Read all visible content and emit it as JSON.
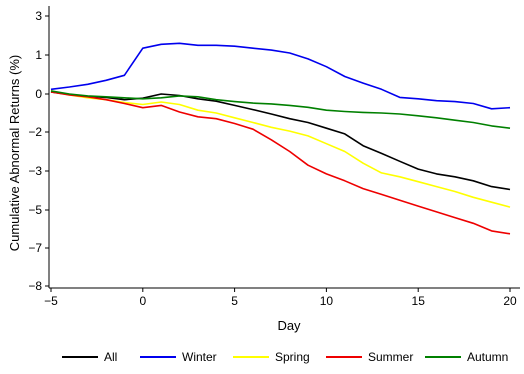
{
  "chart_data": {
    "type": "line",
    "xlabel": "Day",
    "ylabel": "Cumulative Abnormal Returns (%)",
    "xlim": [
      -5,
      20
    ],
    "ylim": [
      -8,
      3.5
    ],
    "xticks": [
      -5,
      0,
      5,
      10,
      15,
      20
    ],
    "yticks": [
      3,
      1,
      0,
      -2,
      -3,
      -5,
      -7,
      -8
    ],
    "ytick_labels": [
      "3",
      "1",
      "0",
      "−2",
      "−3",
      "−5",
      "−7",
      "−8"
    ],
    "xtick_labels": [
      "−5",
      "0",
      "5",
      "10",
      "15",
      "20"
    ],
    "grid": false,
    "legend_position": "bottom",
    "x": [
      -5,
      -4,
      -3,
      -2,
      -1,
      0,
      1,
      2,
      3,
      4,
      5,
      6,
      7,
      8,
      9,
      10,
      11,
      12,
      13,
      14,
      15,
      16,
      17,
      18,
      19,
      20
    ],
    "series": [
      {
        "name": "All",
        "color": "#000000",
        "values": [
          0.05,
          -0.03,
          -0.12,
          -0.18,
          -0.3,
          -0.22,
          0.0,
          -0.08,
          -0.25,
          -0.38,
          -0.6,
          -0.82,
          -1.05,
          -1.3,
          -1.5,
          -1.8,
          -2.05,
          -2.35,
          -2.55,
          -2.75,
          -2.95,
          -3.15,
          -3.3,
          -3.5,
          -3.8,
          -3.95
        ]
      },
      {
        "name": "Winter",
        "color": "#0000ee",
        "values": [
          0.12,
          0.18,
          0.25,
          0.35,
          0.48,
          1.35,
          1.55,
          1.6,
          1.5,
          1.5,
          1.45,
          1.35,
          1.25,
          1.1,
          0.9,
          0.7,
          0.45,
          0.28,
          0.12,
          -0.18,
          -0.25,
          -0.35,
          -0.4,
          -0.5,
          -0.78,
          -0.72
        ]
      },
      {
        "name": "Spring",
        "color": "#ffff00",
        "values": [
          0.08,
          -0.05,
          -0.2,
          -0.3,
          -0.45,
          -0.55,
          -0.42,
          -0.55,
          -0.85,
          -1.0,
          -1.25,
          -1.5,
          -1.75,
          -1.95,
          -2.1,
          -2.3,
          -2.5,
          -2.8,
          -3.1,
          -3.3,
          -3.55,
          -3.8,
          -4.05,
          -4.35,
          -4.6,
          -4.85
        ]
      },
      {
        "name": "Summer",
        "color": "#ee0000",
        "values": [
          0.05,
          -0.05,
          -0.15,
          -0.3,
          -0.5,
          -0.72,
          -0.6,
          -0.95,
          -1.2,
          -1.3,
          -1.55,
          -1.85,
          -2.2,
          -2.5,
          -2.85,
          -3.15,
          -3.5,
          -3.9,
          -4.2,
          -4.5,
          -4.8,
          -5.1,
          -5.4,
          -5.7,
          -6.1,
          -6.25
        ]
      },
      {
        "name": "Autumn",
        "color": "#008000",
        "values": [
          0.08,
          0.0,
          -0.1,
          -0.15,
          -0.2,
          -0.25,
          -0.2,
          -0.1,
          -0.15,
          -0.3,
          -0.4,
          -0.48,
          -0.52,
          -0.6,
          -0.7,
          -0.85,
          -0.92,
          -0.97,
          -1.0,
          -1.05,
          -1.15,
          -1.25,
          -1.38,
          -1.5,
          -1.68,
          -1.8
        ]
      }
    ]
  }
}
